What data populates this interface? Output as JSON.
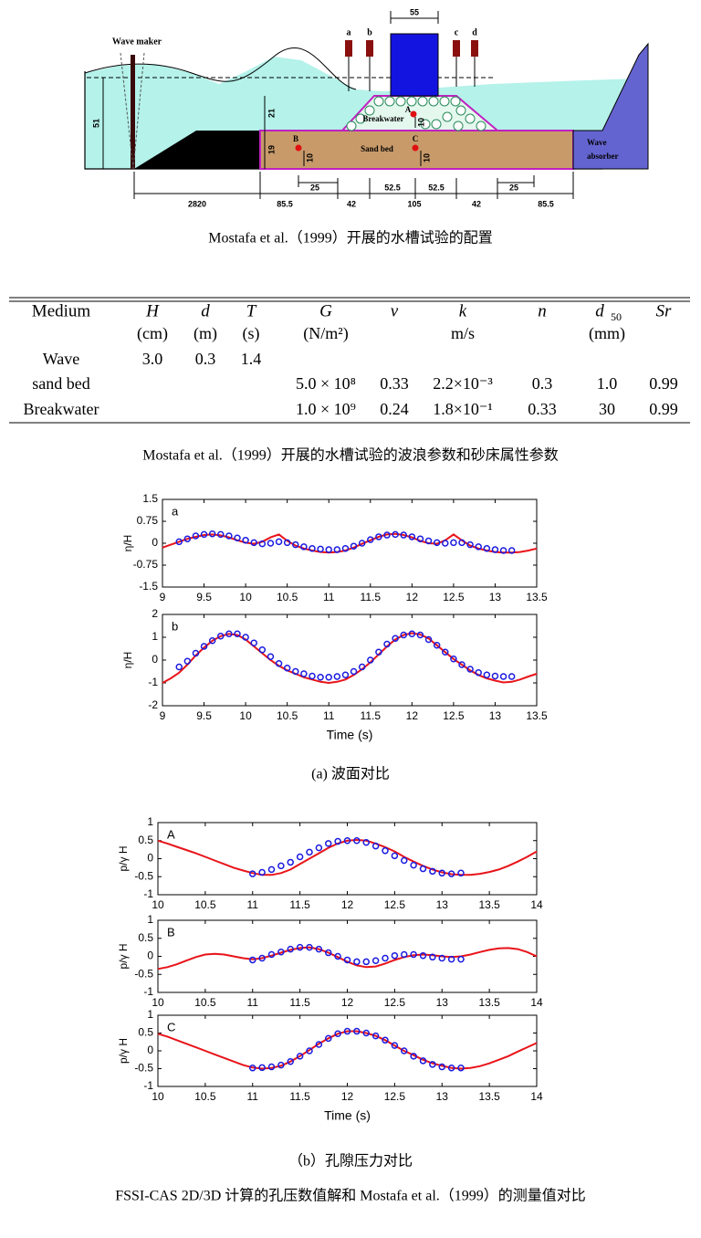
{
  "diagram": {
    "wave_maker": "Wave maker",
    "gauges": [
      "a",
      "b",
      "c",
      "d"
    ],
    "points": [
      "A",
      "B",
      "C"
    ],
    "breakwater": "Breakwater",
    "sand_bed": "Sand bed",
    "wave_absorber": [
      "Wave",
      "absorber"
    ],
    "dims": {
      "water_depth": "51",
      "breakwater_height": "21",
      "bed_depth": "19",
      "point_depths": [
        "10",
        "10",
        "10"
      ],
      "block_width": "55",
      "maker_distance": "2820",
      "bed_left": "85.5",
      "gauge_left": "25",
      "toe_left": "42",
      "crest_left": "52.5",
      "crest_right": "52.5",
      "crest": "105",
      "toe_right": "42",
      "gauge_right": "25",
      "bed_right": "85.5"
    },
    "caption": "Mostafa et al.（1999）开展的水槽试验的配置"
  },
  "table": {
    "columns": [
      {
        "name": "Medium"
      },
      {
        "name": "H",
        "unit": "(cm)"
      },
      {
        "name": "d",
        "unit": "(m)"
      },
      {
        "name": "T",
        "unit": "(s)"
      },
      {
        "name": "G",
        "unit": "(N/m²)"
      },
      {
        "name": "ν"
      },
      {
        "name": "k",
        "unit": "m/s"
      },
      {
        "name": "n"
      },
      {
        "name": "d",
        "sub": "50",
        "unit": "(mm)"
      },
      {
        "name": "Sr"
      }
    ],
    "rows": [
      [
        "Wave",
        "3.0",
        "0.3",
        "1.4",
        null,
        null,
        null,
        null,
        null,
        null
      ],
      [
        "sand bed",
        null,
        null,
        null,
        "5.0 × 10⁸",
        "0.33",
        "2.2×10⁻³",
        "0.3",
        "1.0",
        "0.99"
      ],
      [
        "Breakwater",
        null,
        null,
        null,
        "1.0 × 10⁹",
        "0.24",
        "1.8×10⁻¹",
        "0.33",
        "30",
        "0.99"
      ]
    ],
    "caption": "Mostafa et al.（1999）开展的水槽试验的波浪参数和砂床属性参数"
  },
  "captions": {
    "a": "(a)  波面对比",
    "b": "（b）孔隙压力对比",
    "figure": "FSSI-CAS 2D/3D 计算的孔压数值解和 Mostafa et al.（1999）的测量值对比"
  },
  "chart_data": [
    {
      "type": "line",
      "label": "a",
      "ylabel": "η/H",
      "xlim": [
        9,
        13.5
      ],
      "ylim": [
        -1.5,
        1.5
      ],
      "xticks": [
        9,
        9.5,
        10,
        10.5,
        11,
        11.5,
        12,
        12.5,
        13,
        13.5
      ],
      "yticks": [
        -1.5,
        -0.75,
        0,
        0.75,
        1.5
      ],
      "series": [
        {
          "type": "line",
          "color": "#e8141a",
          "x": [
            9,
            9.1,
            9.2,
            9.3,
            9.4,
            9.5,
            9.6,
            9.7,
            9.8,
            9.9,
            10,
            10.1,
            10.2,
            10.3,
            10.4,
            10.5,
            10.6,
            10.7,
            10.8,
            10.9,
            11,
            11.1,
            11.2,
            11.3,
            11.4,
            11.5,
            11.6,
            11.7,
            11.8,
            11.9,
            12,
            12.1,
            12.2,
            12.3,
            12.4,
            12.5,
            12.6,
            12.7,
            12.8,
            12.9,
            13,
            13.1,
            13.2,
            13.3,
            13.4,
            13.5
          ],
          "values": [
            -0.15,
            -0.05,
            0.05,
            0.15,
            0.22,
            0.28,
            0.3,
            0.27,
            0.2,
            0.1,
            0.02,
            -0.02,
            0.05,
            0.2,
            0.3,
            0.08,
            -0.08,
            -0.18,
            -0.25,
            -0.3,
            -0.32,
            -0.3,
            -0.25,
            -0.15,
            -0.02,
            0.1,
            0.22,
            0.3,
            0.32,
            0.28,
            0.2,
            0.08,
            0,
            -0.02,
            0.1,
            0.3,
            0.1,
            -0.08,
            -0.18,
            -0.25,
            -0.3,
            -0.32,
            -0.32,
            -0.3,
            -0.25,
            -0.18
          ]
        },
        {
          "type": "scatter",
          "color": "#1a1ae0",
          "x": [
            9.2,
            9.3,
            9.4,
            9.5,
            9.6,
            9.7,
            9.8,
            9.9,
            10,
            10.1,
            10.2,
            10.3,
            10.4,
            10.5,
            10.6,
            10.7,
            10.8,
            10.9,
            11,
            11.1,
            11.2,
            11.3,
            11.4,
            11.5,
            11.6,
            11.7,
            11.8,
            11.9,
            12,
            12.1,
            12.2,
            12.3,
            12.4,
            12.5,
            12.6,
            12.7,
            12.8,
            12.9,
            13,
            13.1,
            13.2
          ],
          "values": [
            0.05,
            0.15,
            0.25,
            0.3,
            0.32,
            0.3,
            0.25,
            0.18,
            0.1,
            0.02,
            -0.02,
            0,
            0.05,
            0.02,
            -0.05,
            -0.12,
            -0.18,
            -0.2,
            -0.22,
            -0.22,
            -0.18,
            -0.1,
            0,
            0.12,
            0.22,
            0.28,
            0.3,
            0.28,
            0.22,
            0.15,
            0.08,
            0.02,
            0,
            0.02,
            0.02,
            -0.05,
            -0.12,
            -0.18,
            -0.22,
            -0.25,
            -0.25
          ]
        }
      ]
    },
    {
      "type": "line",
      "label": "b",
      "ylabel": "η/H",
      "xlabel": "Time (s)",
      "xlim": [
        9,
        13.5
      ],
      "ylim": [
        -2,
        2
      ],
      "xticks": [
        9,
        9.5,
        10,
        10.5,
        11,
        11.5,
        12,
        12.5,
        13,
        13.5
      ],
      "yticks": [
        -2,
        -1,
        0,
        1,
        2
      ],
      "series": [
        {
          "type": "line",
          "color": "#e8141a",
          "x": [
            9,
            9.1,
            9.2,
            9.3,
            9.4,
            9.5,
            9.6,
            9.7,
            9.8,
            9.9,
            10,
            10.1,
            10.2,
            10.3,
            10.4,
            10.5,
            10.6,
            10.7,
            10.8,
            10.9,
            11,
            11.1,
            11.2,
            11.3,
            11.4,
            11.5,
            11.6,
            11.7,
            11.8,
            11.9,
            12,
            12.1,
            12.2,
            12.3,
            12.4,
            12.5,
            12.6,
            12.7,
            12.8,
            12.9,
            13,
            13.1,
            13.2,
            13.3,
            13.4,
            13.5
          ],
          "values": [
            -1,
            -0.8,
            -0.55,
            -0.2,
            0.2,
            0.55,
            0.85,
            1.05,
            1.15,
            1.1,
            0.9,
            0.6,
            0.3,
            0,
            -0.25,
            -0.45,
            -0.6,
            -0.75,
            -0.85,
            -0.95,
            -1,
            -0.95,
            -0.85,
            -0.65,
            -0.4,
            -0.1,
            0.25,
            0.6,
            0.9,
            1.1,
            1.18,
            1.12,
            0.95,
            0.65,
            0.35,
            0.05,
            -0.2,
            -0.45,
            -0.65,
            -0.8,
            -0.9,
            -0.98,
            -0.95,
            -0.85,
            -0.72,
            -0.6
          ]
        },
        {
          "type": "scatter",
          "color": "#1a1ae0",
          "x": [
            9.2,
            9.3,
            9.4,
            9.5,
            9.6,
            9.7,
            9.8,
            9.9,
            10,
            10.1,
            10.2,
            10.3,
            10.4,
            10.5,
            10.6,
            10.7,
            10.8,
            10.9,
            11,
            11.1,
            11.2,
            11.3,
            11.4,
            11.5,
            11.6,
            11.7,
            11.8,
            11.9,
            12,
            12.1,
            12.2,
            12.3,
            12.4,
            12.5,
            12.6,
            12.7,
            12.8,
            12.9,
            13,
            13.1,
            13.2
          ],
          "values": [
            -0.3,
            -0.05,
            0.3,
            0.6,
            0.85,
            1.05,
            1.15,
            1.15,
            1,
            0.75,
            0.45,
            0.15,
            -0.15,
            -0.35,
            -0.5,
            -0.6,
            -0.7,
            -0.75,
            -0.75,
            -0.72,
            -0.65,
            -0.5,
            -0.3,
            0,
            0.35,
            0.7,
            0.95,
            1.1,
            1.15,
            1.1,
            0.9,
            0.65,
            0.35,
            0.05,
            -0.2,
            -0.4,
            -0.55,
            -0.65,
            -0.7,
            -0.72,
            -0.72
          ]
        }
      ]
    },
    {
      "type": "line",
      "label": "A",
      "ylabel": "p/γ H",
      "xlim": [
        10,
        14
      ],
      "ylim": [
        -1,
        1
      ],
      "xticks": [
        10,
        10.5,
        11,
        11.5,
        12,
        12.5,
        13,
        13.5,
        14
      ],
      "yticks": [
        -1,
        -0.5,
        0,
        0.5,
        1
      ],
      "series": [
        {
          "type": "line",
          "color": "#e8141a",
          "x": [
            10,
            10.1,
            10.2,
            10.3,
            10.4,
            10.5,
            10.6,
            10.7,
            10.8,
            10.9,
            11,
            11.1,
            11.2,
            11.3,
            11.4,
            11.5,
            11.6,
            11.7,
            11.8,
            11.9,
            12,
            12.1,
            12.2,
            12.3,
            12.4,
            12.5,
            12.6,
            12.7,
            12.8,
            12.9,
            13,
            13.1,
            13.2,
            13.3,
            13.4,
            13.5,
            13.6,
            13.7,
            13.8,
            13.9,
            14
          ],
          "values": [
            0.5,
            0.42,
            0.33,
            0.24,
            0.15,
            0.05,
            -0.05,
            -0.15,
            -0.25,
            -0.33,
            -0.4,
            -0.45,
            -0.45,
            -0.4,
            -0.3,
            -0.15,
            0,
            0.15,
            0.3,
            0.42,
            0.5,
            0.52,
            0.5,
            0.42,
            0.32,
            0.2,
            0.05,
            -0.08,
            -0.2,
            -0.3,
            -0.38,
            -0.43,
            -0.45,
            -0.45,
            -0.42,
            -0.37,
            -0.3,
            -0.2,
            -0.08,
            0.05,
            0.2
          ]
        },
        {
          "type": "scatter",
          "color": "#1a1ae0",
          "x": [
            11,
            11.1,
            11.2,
            11.3,
            11.4,
            11.5,
            11.6,
            11.7,
            11.8,
            11.9,
            12,
            12.1,
            12.2,
            12.3,
            12.4,
            12.5,
            12.6,
            12.7,
            12.8,
            12.9,
            13,
            13.1,
            13.2
          ],
          "values": [
            -0.42,
            -0.38,
            -0.3,
            -0.2,
            -0.1,
            0.05,
            0.18,
            0.3,
            0.42,
            0.48,
            0.5,
            0.5,
            0.45,
            0.35,
            0.22,
            0.08,
            -0.05,
            -0.18,
            -0.28,
            -0.35,
            -0.4,
            -0.42,
            -0.4
          ]
        }
      ]
    },
    {
      "type": "line",
      "label": "B",
      "ylabel": "p/γ H",
      "xlim": [
        10,
        14
      ],
      "ylim": [
        -1,
        1
      ],
      "xticks": [
        10,
        10.5,
        11,
        11.5,
        12,
        12.5,
        13,
        13.5,
        14
      ],
      "yticks": [
        -1,
        -0.5,
        0,
        0.5,
        1
      ],
      "series": [
        {
          "type": "line",
          "color": "#e8141a",
          "x": [
            10,
            10.1,
            10.2,
            10.3,
            10.4,
            10.5,
            10.6,
            10.7,
            10.8,
            10.9,
            11,
            11.1,
            11.2,
            11.3,
            11.4,
            11.5,
            11.6,
            11.7,
            11.8,
            11.9,
            12,
            12.1,
            12.2,
            12.3,
            12.4,
            12.5,
            12.6,
            12.7,
            12.8,
            12.9,
            13,
            13.1,
            13.2,
            13.3,
            13.4,
            13.5,
            13.6,
            13.7,
            13.8,
            13.9,
            14
          ],
          "values": [
            -0.35,
            -0.3,
            -0.22,
            -0.12,
            -0.02,
            0.05,
            0.07,
            0.05,
            0,
            -0.05,
            -0.08,
            -0.05,
            0.02,
            0.1,
            0.18,
            0.23,
            0.25,
            0.2,
            0.1,
            -0.02,
            -0.15,
            -0.25,
            -0.3,
            -0.28,
            -0.2,
            -0.1,
            -0.02,
            0.03,
            0.05,
            0.03,
            0,
            -0.02,
            0,
            0.05,
            0.12,
            0.18,
            0.22,
            0.23,
            0.2,
            0.12,
            0
          ]
        },
        {
          "type": "scatter",
          "color": "#1a1ae0",
          "x": [
            11,
            11.1,
            11.2,
            11.3,
            11.4,
            11.5,
            11.6,
            11.7,
            11.8,
            11.9,
            12,
            12.1,
            12.2,
            12.3,
            12.4,
            12.5,
            12.6,
            12.7,
            12.8,
            12.9,
            13,
            13.1,
            13.2
          ],
          "values": [
            -0.1,
            -0.05,
            0.05,
            0.12,
            0.2,
            0.25,
            0.25,
            0.2,
            0.1,
            0,
            -0.1,
            -0.15,
            -0.15,
            -0.12,
            -0.05,
            0.02,
            0.05,
            0.05,
            0.02,
            -0.02,
            -0.05,
            -0.08,
            -0.08
          ]
        }
      ]
    },
    {
      "type": "line",
      "label": "C",
      "ylabel": "p/γ H",
      "xlabel": "Time  (s)",
      "xlim": [
        10,
        14
      ],
      "ylim": [
        -1,
        1
      ],
      "xticks": [
        10,
        10.5,
        11,
        11.5,
        12,
        12.5,
        13,
        13.5,
        14
      ],
      "yticks": [
        -1,
        -0.5,
        0,
        0.5,
        1
      ],
      "series": [
        {
          "type": "line",
          "color": "#e8141a",
          "x": [
            10,
            10.1,
            10.2,
            10.3,
            10.4,
            10.5,
            10.6,
            10.7,
            10.8,
            10.9,
            11,
            11.1,
            11.2,
            11.3,
            11.4,
            11.5,
            11.6,
            11.7,
            11.8,
            11.9,
            12,
            12.1,
            12.2,
            12.3,
            12.4,
            12.5,
            12.6,
            12.7,
            12.8,
            12.9,
            13,
            13.1,
            13.2,
            13.3,
            13.4,
            13.5,
            13.6,
            13.7,
            13.8,
            13.9,
            14
          ],
          "values": [
            0.48,
            0.4,
            0.3,
            0.2,
            0.1,
            0,
            -0.1,
            -0.2,
            -0.3,
            -0.4,
            -0.47,
            -0.5,
            -0.48,
            -0.42,
            -0.3,
            -0.15,
            0.02,
            0.2,
            0.35,
            0.48,
            0.55,
            0.55,
            0.5,
            0.42,
            0.3,
            0.15,
            0,
            -0.12,
            -0.25,
            -0.35,
            -0.42,
            -0.48,
            -0.5,
            -0.48,
            -0.43,
            -0.35,
            -0.25,
            -0.15,
            -0.02,
            0.1,
            0.22
          ]
        },
        {
          "type": "scatter",
          "color": "#1a1ae0",
          "x": [
            11,
            11.1,
            11.2,
            11.3,
            11.4,
            11.5,
            11.6,
            11.7,
            11.8,
            11.9,
            12,
            12.1,
            12.2,
            12.3,
            12.4,
            12.5,
            12.6,
            12.7,
            12.8,
            12.9,
            13,
            13.1,
            13.2
          ],
          "values": [
            -0.48,
            -0.47,
            -0.45,
            -0.4,
            -0.3,
            -0.15,
            0,
            0.18,
            0.35,
            0.48,
            0.55,
            0.55,
            0.5,
            0.42,
            0.3,
            0.15,
            0,
            -0.15,
            -0.28,
            -0.38,
            -0.45,
            -0.48,
            -0.48
          ]
        }
      ]
    }
  ]
}
